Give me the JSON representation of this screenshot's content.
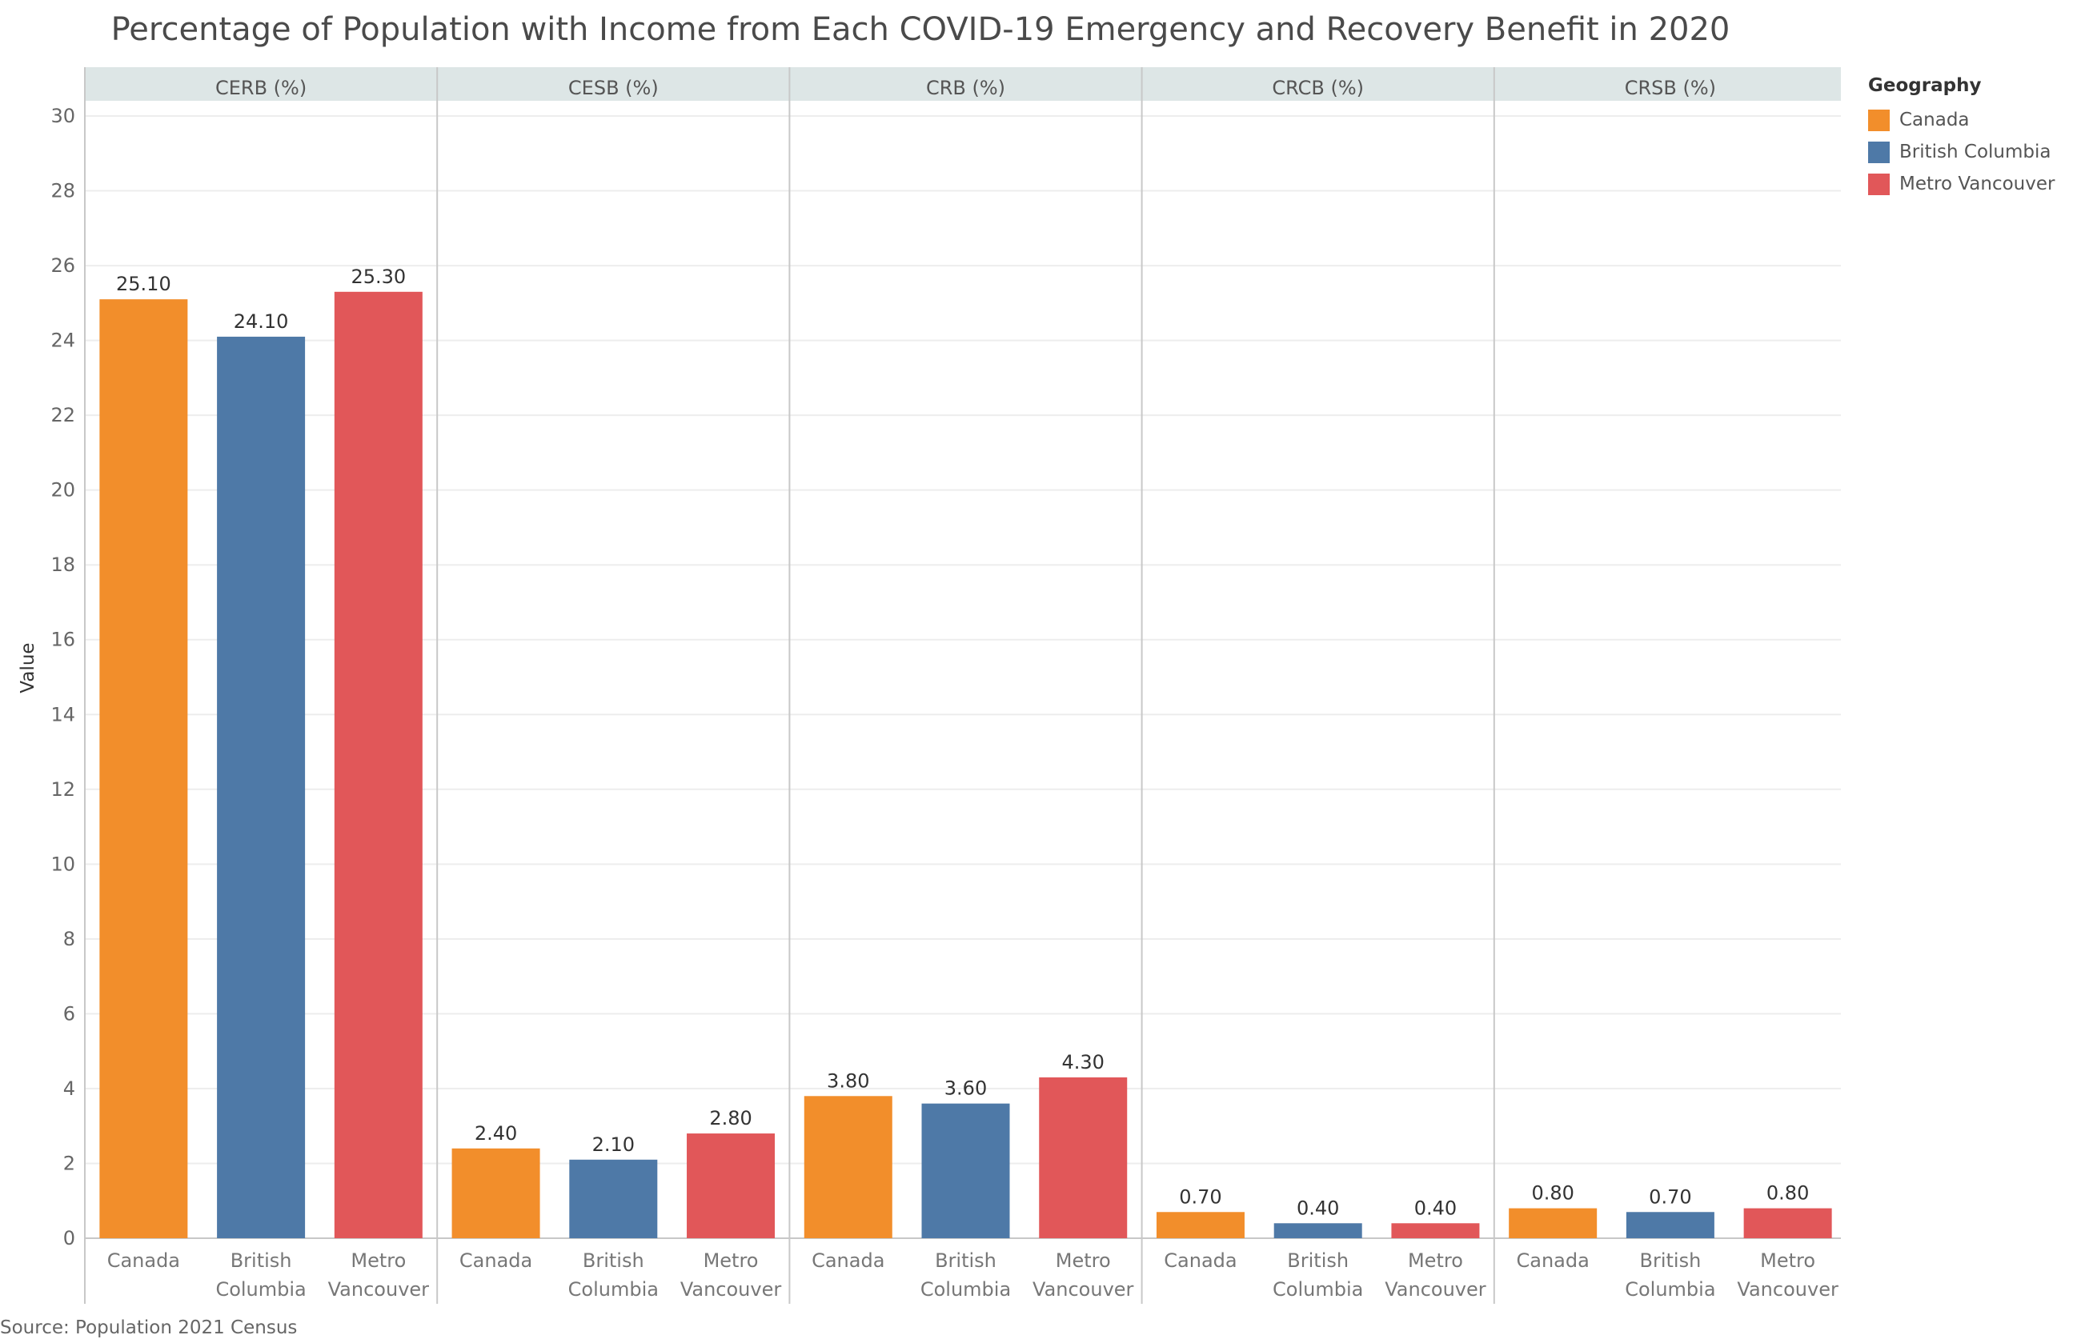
{
  "title": "Percentage of Population with Income from Each COVID-19 Emergency and Recovery Benefit in 2020",
  "source": "Source: Population 2021 Census",
  "legend": {
    "title": "Geography",
    "items": [
      {
        "label": "Canada",
        "color": "#F28E2B"
      },
      {
        "label": "British Columbia",
        "color": "#4E79A7"
      },
      {
        "label": "Metro Vancouver",
        "color": "#E15759"
      }
    ]
  },
  "chart_data": {
    "type": "bar",
    "ylabel": "Value",
    "xlabel": "",
    "ylim": [
      0,
      30
    ],
    "yticks": [
      0,
      2,
      4,
      6,
      8,
      10,
      12,
      14,
      16,
      18,
      20,
      22,
      24,
      26,
      28,
      30
    ],
    "grid": true,
    "legend_position": "right",
    "panels": [
      "CERB (%)",
      "CESB (%)",
      "CRB (%)",
      "CRCB (%)",
      "CRSB (%)"
    ],
    "categories": [
      [
        "Canada"
      ],
      [
        "British",
        "Columbia"
      ],
      [
        "Metro",
        "Vancouver"
      ]
    ],
    "series": [
      {
        "name": "CERB (%)",
        "values": [
          25.1,
          24.1,
          25.3
        ],
        "labels": [
          "25.10",
          "24.10",
          "25.30"
        ]
      },
      {
        "name": "CESB (%)",
        "values": [
          2.4,
          2.1,
          2.8
        ],
        "labels": [
          "2.40",
          "2.10",
          "2.80"
        ]
      },
      {
        "name": "CRB (%)",
        "values": [
          3.8,
          3.6,
          4.3
        ],
        "labels": [
          "3.80",
          "3.60",
          "4.30"
        ]
      },
      {
        "name": "CRCB (%)",
        "values": [
          0.7,
          0.4,
          0.4
        ],
        "labels": [
          "0.70",
          "0.40",
          "0.40"
        ]
      },
      {
        "name": "CRSB (%)",
        "values": [
          0.8,
          0.7,
          0.8
        ],
        "labels": [
          "0.80",
          "0.70",
          "0.80"
        ]
      }
    ]
  }
}
